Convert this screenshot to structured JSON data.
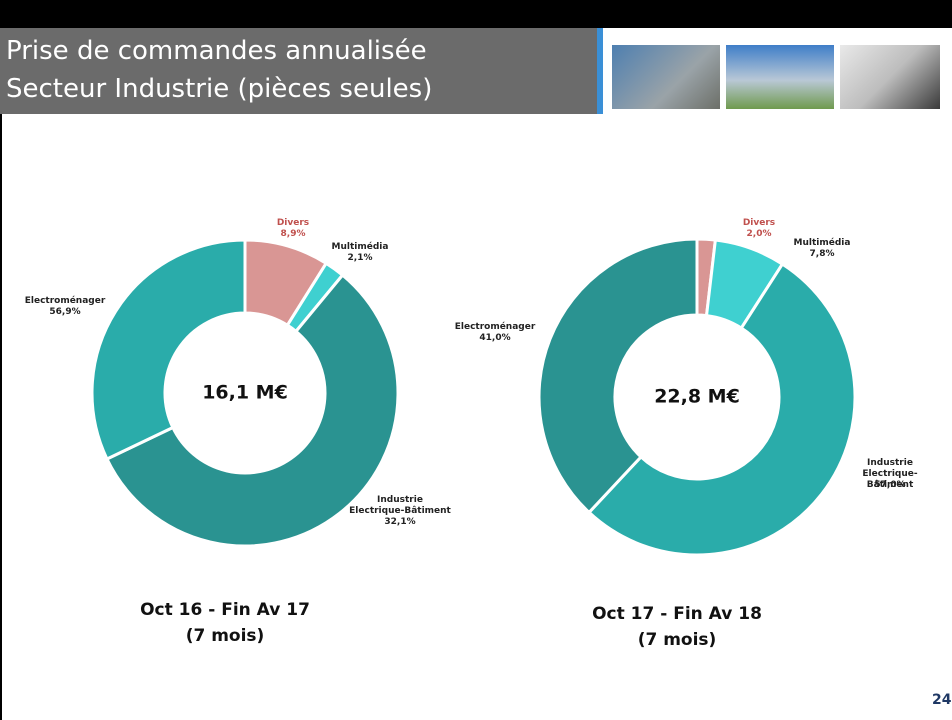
{
  "slide": {
    "title_lines": [
      "Prise de commandes annualisée",
      "Secteur Industrie (pièces seules)"
    ],
    "page_number": "24"
  },
  "chart_data": [
    {
      "type": "pie",
      "center_label": "16,1 M€",
      "caption": [
        "Oct 16 - Fin Av 17",
        "(7 mois)"
      ],
      "categories": [
        "Divers",
        "Multimédia",
        "Electroménager",
        "Industrie\nElectrique-Bâtiment"
      ],
      "values": [
        8.9,
        2.1,
        56.9,
        32.1
      ],
      "value_labels": [
        "8,9%",
        "2,1%",
        "56,9%",
        "32,1%"
      ],
      "colors": [
        "#d99694",
        "#3fd0d0",
        "#2a9391",
        "#2aacaa"
      ]
    },
    {
      "type": "pie",
      "center_label": "22,8 M€",
      "caption": [
        "Oct 17 - Fin Av 18",
        "(7 mois)"
      ],
      "categories": [
        "Divers",
        "Multimédia",
        "Industrie\nElectrique-Bâtiment",
        "Electroménager"
      ],
      "values": [
        2.0,
        7.8,
        57.0,
        41.0
      ],
      "value_labels": [
        "2,0%",
        "7,8%",
        "57,0%",
        "41,0%"
      ],
      "colors": [
        "#d99694",
        "#3fd0d0",
        "#2aacaa",
        "#2a9391"
      ]
    }
  ]
}
